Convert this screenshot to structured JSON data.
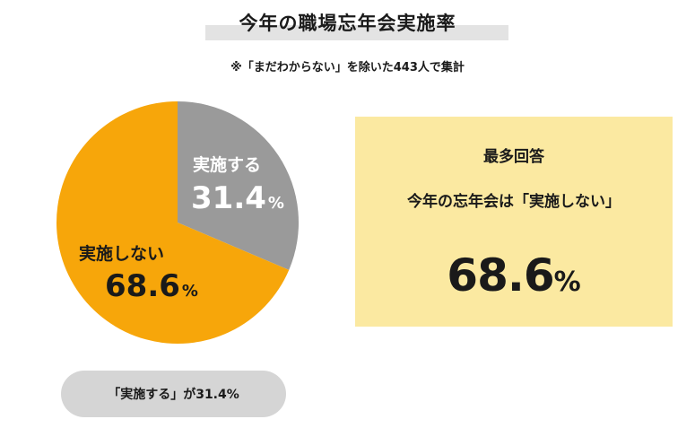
{
  "header": {
    "title": "今年の職場忘年会実施率",
    "subtitle": "※「まだわからない」を除いた443人で集計"
  },
  "chart_data": {
    "type": "pie",
    "slices": [
      {
        "label": "実施する",
        "value": 31.4,
        "display": "31.4",
        "color": "#9a9a9a"
      },
      {
        "label": "実施しない",
        "value": 68.6,
        "display": "68.6",
        "color": "#f7a60a"
      }
    ],
    "unit": "%"
  },
  "highlight": {
    "heading": "最多回答",
    "answer": "今年の忘年会は「実施しない」",
    "value": "68.6",
    "unit": "%"
  },
  "caption": "「実施する」が31.4%"
}
